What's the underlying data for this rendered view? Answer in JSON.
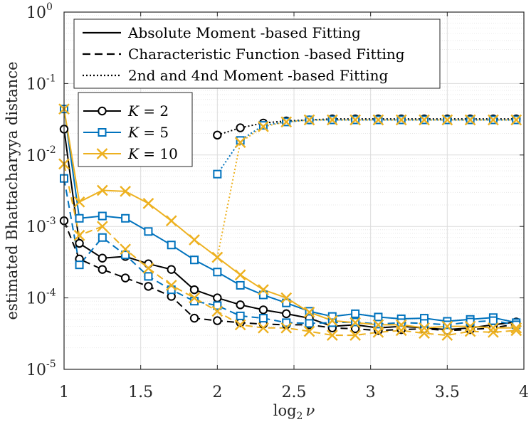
{
  "chart_data": {
    "type": "line",
    "title": "",
    "xlabel": "log",
    "xlabel_sub": "2",
    "xlabel_var": "ν",
    "ylabel": "estimated Bhattacharyya distance",
    "xlim": [
      1,
      4
    ],
    "ylim": [
      1e-05,
      1
    ],
    "yscale": "log",
    "grid": true,
    "x_ticks": [
      1,
      1.5,
      2,
      2.5,
      3,
      3.5,
      4
    ],
    "x_tick_labels": [
      "1",
      "1.5",
      "2",
      "2.5",
      "3",
      "3.5",
      "4"
    ],
    "y_ticks": [
      {
        "base": "10",
        "exp": "-5",
        "value": 1e-05
      },
      {
        "base": "10",
        "exp": "-4",
        "value": 0.0001
      },
      {
        "base": "10",
        "exp": "-3",
        "value": 0.001
      },
      {
        "base": "10",
        "exp": "-2",
        "value": 0.01
      },
      {
        "base": "10",
        "exp": "-1",
        "value": 0.1
      },
      {
        "base": "10",
        "exp": "0",
        "value": 1
      }
    ],
    "style_legend": [
      {
        "label": "Absolute Moment -based Fitting",
        "dash": "solid"
      },
      {
        "label": "Characteristic Function -based Fitting",
        "dash": "dashed"
      },
      {
        "label": "2nd and 4nd Moment -based Fitting",
        "dash": "dotted"
      }
    ],
    "k_legend": [
      {
        "var": "K",
        "eq": " = 2",
        "color": "#000000",
        "marker": "circle"
      },
      {
        "var": "K",
        "eq": " = 5",
        "color": "#0072BD",
        "marker": "square"
      },
      {
        "var": "K",
        "eq": " = 10",
        "color": "#EDB120",
        "marker": "x"
      }
    ],
    "series": [
      {
        "name": "Absolute Moment K=2",
        "k": 0,
        "dash": "solid",
        "x": [
          1,
          1.1,
          1.25,
          1.4,
          1.55,
          1.7,
          1.85,
          2,
          2.15,
          2.3,
          2.45,
          2.6,
          2.75,
          2.9,
          3.05,
          3.2,
          3.35,
          3.5,
          3.65,
          3.8,
          3.95
        ],
        "y": [
          0.023,
          0.00058,
          0.00036,
          0.00038,
          0.0003,
          0.00025,
          0.00013,
          0.0001,
          8e-05,
          6.8e-05,
          6e-05,
          5.2e-05,
          4e-05,
          4.2e-05,
          3.8e-05,
          4e-05,
          3.8e-05,
          3.6e-05,
          3.8e-05,
          4.2e-05,
          4.6e-05
        ]
      },
      {
        "name": "Absolute Moment K=5",
        "k": 1,
        "dash": "solid",
        "x": [
          1,
          1.1,
          1.25,
          1.4,
          1.55,
          1.7,
          1.85,
          2,
          2.15,
          2.3,
          2.45,
          2.6,
          2.75,
          2.9,
          3.05,
          3.2,
          3.35,
          3.5,
          3.65,
          3.8,
          3.95
        ],
        "y": [
          0.044,
          0.0013,
          0.0014,
          0.0013,
          0.00085,
          0.00055,
          0.00034,
          0.00023,
          0.00015,
          0.00011,
          8.5e-05,
          6.5e-05,
          5.5e-05,
          6e-05,
          5.4e-05,
          5.1e-05,
          5.2e-05,
          4.7e-05,
          5e-05,
          5.3e-05,
          4.5e-05
        ]
      },
      {
        "name": "Absolute Moment K=10",
        "k": 2,
        "dash": "solid",
        "x": [
          1,
          1.1,
          1.25,
          1.4,
          1.55,
          1.7,
          1.85,
          2,
          2.15,
          2.3,
          2.45,
          2.6,
          2.75,
          2.9,
          3.05,
          3.2,
          3.35,
          3.5,
          3.65,
          3.8,
          3.95
        ],
        "y": [
          0.044,
          0.0022,
          0.0032,
          0.0031,
          0.0021,
          0.0012,
          0.00065,
          0.00037,
          0.00021,
          0.00013,
          0.0001,
          6.3e-05,
          4.8e-05,
          4.5e-05,
          4.2e-05,
          4.2e-05,
          3.8e-05,
          4e-05,
          4e-05,
          3.8e-05,
          3.8e-05
        ]
      },
      {
        "name": "Characteristic Function K=2",
        "k": 0,
        "dash": "dashed",
        "x": [
          1,
          1.1,
          1.25,
          1.4,
          1.55,
          1.7,
          1.85,
          2,
          2.15,
          2.3,
          2.45,
          2.6,
          2.75,
          2.9,
          3.05,
          3.2,
          3.35,
          3.5,
          3.65,
          3.8,
          3.95
        ],
        "y": [
          0.0012,
          0.00035,
          0.00025,
          0.00019,
          0.000145,
          0.000105,
          5.2e-05,
          4.8e-05,
          4.5e-05,
          4.3e-05,
          4.2e-05,
          4.2e-05,
          3.8e-05,
          3.7e-05,
          3.5e-05,
          3.6e-05,
          3.7e-05,
          3.5e-05,
          3.6e-05,
          3.8e-05,
          4.3e-05
        ]
      },
      {
        "name": "Characteristic Function K=5",
        "k": 1,
        "dash": "dashed",
        "x": [
          1,
          1.1,
          1.25,
          1.4,
          1.55,
          1.7,
          1.85,
          2,
          2.15,
          2.3,
          2.45,
          2.6,
          2.75,
          2.9,
          3.05,
          3.2,
          3.35,
          3.5,
          3.65,
          3.8,
          3.95
        ],
        "y": [
          0.0047,
          0.00029,
          0.0007,
          0.0004,
          0.0002,
          0.00013,
          9e-05,
          7.8e-05,
          5.6e-05,
          5.2e-05,
          4.5e-05,
          4.4e-05,
          4.5e-05,
          4.6e-05,
          4.3e-05,
          4.5e-05,
          4.4e-05,
          4.2e-05,
          4.6e-05,
          4.8e-05,
          4.2e-05
        ]
      },
      {
        "name": "Characteristic Function K=10",
        "k": 2,
        "dash": "dashed",
        "x": [
          1,
          1.1,
          1.25,
          1.4,
          1.55,
          1.7,
          1.85,
          2,
          2.15,
          2.3,
          2.45,
          2.6,
          2.75,
          2.9,
          3.05,
          3.2,
          3.35,
          3.5,
          3.65,
          3.8,
          3.95
        ],
        "y": [
          0.0075,
          0.00075,
          0.001,
          0.00048,
          0.00026,
          0.00015,
          0.0001,
          6.5e-05,
          4.2e-05,
          3.8e-05,
          3.8e-05,
          3.4e-05,
          3e-05,
          3e-05,
          3.3e-05,
          3.5e-05,
          3.2e-05,
          3e-05,
          3.4e-05,
          3.3e-05,
          3.5e-05
        ]
      },
      {
        "name": "2nd and 4nd Moment K=2",
        "k": 0,
        "dash": "dotted",
        "x": [
          2,
          2.15,
          2.3,
          2.45,
          2.6,
          2.75,
          2.9,
          3.05,
          3.2,
          3.35,
          3.5,
          3.65,
          3.8,
          3.95
        ],
        "y": [
          0.019,
          0.024,
          0.028,
          0.03,
          0.031,
          0.032,
          0.032,
          0.032,
          0.032,
          0.032,
          0.032,
          0.032,
          0.032,
          0.032
        ]
      },
      {
        "name": "2nd and 4nd Moment K=5",
        "k": 1,
        "dash": "dotted",
        "x": [
          2,
          2.15,
          2.3,
          2.45,
          2.6,
          2.75,
          2.9,
          3.05,
          3.2,
          3.35,
          3.5,
          3.65,
          3.8,
          3.95
        ],
        "y": [
          0.0054,
          0.016,
          0.026,
          0.029,
          0.031,
          0.031,
          0.031,
          0.031,
          0.031,
          0.031,
          0.031,
          0.031,
          0.031,
          0.031
        ]
      },
      {
        "name": "2nd and 4nd Moment K=10",
        "k": 2,
        "dash": "dotted",
        "x": [
          2,
          2.15,
          2.3,
          2.45,
          2.6,
          2.75,
          2.9,
          3.05,
          3.2,
          3.35,
          3.5,
          3.65,
          3.8,
          3.95
        ],
        "y": [
          0.00037,
          0.015,
          0.025,
          0.029,
          0.031,
          0.031,
          0.031,
          0.031,
          0.031,
          0.031,
          0.031,
          0.031,
          0.031,
          0.031
        ]
      }
    ]
  }
}
